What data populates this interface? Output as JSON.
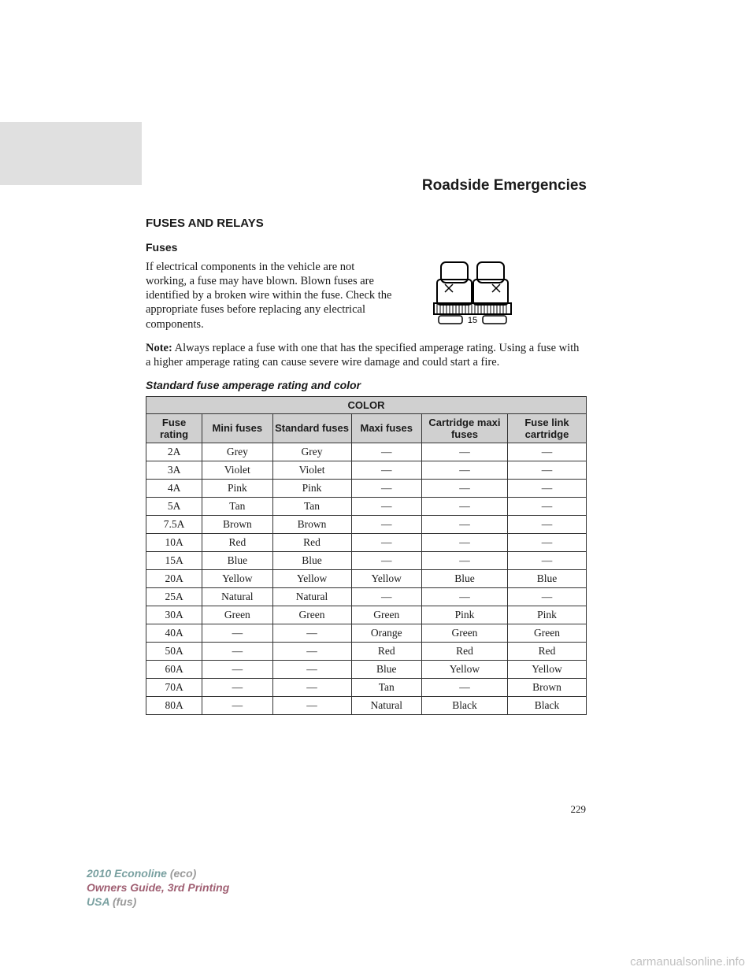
{
  "chapter": "Roadside Emergencies",
  "heading1": "FUSES AND RELAYS",
  "heading2": "Fuses",
  "para1": "If electrical components in the vehicle are not working, a fuse may have blown. Blown fuses are identified by a broken wire within the fuse. Check the appropriate fuses before replacing any electrical components.",
  "noteLabel": "Note:",
  "noteText": " Always replace a fuse with one that has the specified amperage rating. Using a fuse with a higher amperage rating can cause severe wire damage and could start a fire.",
  "tableCaption": "Standard fuse amperage rating and color",
  "fuseLabel": "15",
  "table": {
    "superHeader": "COLOR",
    "columns": [
      "Fuse rating",
      "Mini fuses",
      "Standard fuses",
      "Maxi fuses",
      "Cartridge maxi fuses",
      "Fuse link cartridge"
    ],
    "rows": [
      [
        "2A",
        "Grey",
        "Grey",
        "—",
        "—",
        "—"
      ],
      [
        "3A",
        "Violet",
        "Violet",
        "—",
        "—",
        "—"
      ],
      [
        "4A",
        "Pink",
        "Pink",
        "—",
        "—",
        "—"
      ],
      [
        "5A",
        "Tan",
        "Tan",
        "—",
        "—",
        "—"
      ],
      [
        "7.5A",
        "Brown",
        "Brown",
        "—",
        "—",
        "—"
      ],
      [
        "10A",
        "Red",
        "Red",
        "—",
        "—",
        "—"
      ],
      [
        "15A",
        "Blue",
        "Blue",
        "—",
        "—",
        "—"
      ],
      [
        "20A",
        "Yellow",
        "Yellow",
        "Yellow",
        "Blue",
        "Blue"
      ],
      [
        "25A",
        "Natural",
        "Natural",
        "—",
        "—",
        "—"
      ],
      [
        "30A",
        "Green",
        "Green",
        "Green",
        "Pink",
        "Pink"
      ],
      [
        "40A",
        "—",
        "—",
        "Orange",
        "Green",
        "Green"
      ],
      [
        "50A",
        "—",
        "—",
        "Red",
        "Red",
        "Red"
      ],
      [
        "60A",
        "—",
        "—",
        "Blue",
        "Yellow",
        "Yellow"
      ],
      [
        "70A",
        "—",
        "—",
        "Tan",
        "—",
        "Brown"
      ],
      [
        "80A",
        "—",
        "—",
        "Natural",
        "Black",
        "Black"
      ]
    ],
    "colWidths": [
      "70px",
      "90px",
      "100px",
      "90px",
      "110px",
      "100px"
    ]
  },
  "pageNumber": "229",
  "footer": {
    "model": "2010 Econoline",
    "eco": "(eco)",
    "guide": "Owners Guide, 3rd Printing",
    "usa": "USA",
    "fus": "(fus)"
  },
  "watermark": "carmanualsonline.info",
  "colors": {
    "headerBg": "#d0d0d0",
    "border": "#333333",
    "greyBlock": "#e0e0e0"
  }
}
